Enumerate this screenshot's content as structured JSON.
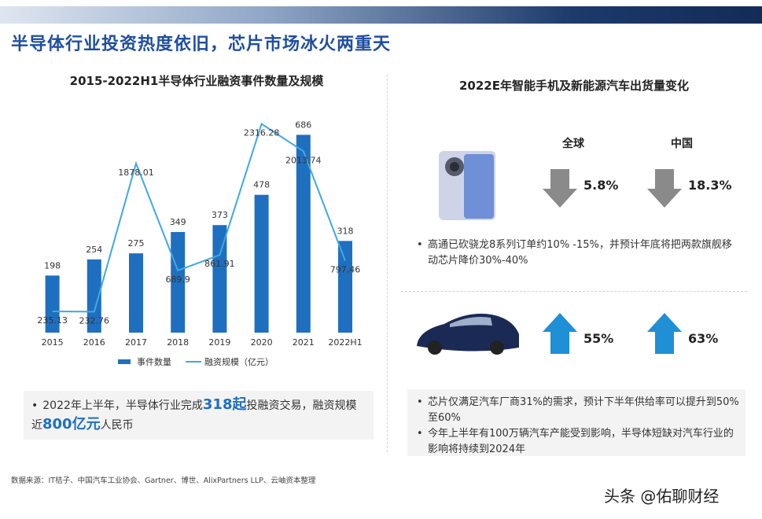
{
  "title": "半导体行业投资热度依旧，芯片市场冰火两重天",
  "chart_data": {
    "type": "bar",
    "title": "2015-2022H1半导体行业融资事件数量及规模",
    "categories": [
      "2015",
      "2016",
      "2017",
      "2018",
      "2019",
      "2020",
      "2021",
      "2022H1"
    ],
    "series": [
      {
        "name": "事件数量",
        "type": "bar",
        "color": "#1f6fc0",
        "values": [
          198,
          254,
          275,
          349,
          373,
          478,
          686,
          318
        ]
      },
      {
        "name": "融资规模（亿元）",
        "type": "line",
        "axis": "y2",
        "color": "#3fa9e0",
        "values": [
          235.13,
          232.76,
          1878.01,
          689.9,
          861.91,
          2316.28,
          2013.74,
          797.46
        ]
      }
    ],
    "ylim": [
      0,
      750
    ],
    "y2lim": [
      0,
      2400
    ],
    "legend": "bottom"
  },
  "left_note": [
    "2022年上半年，半导体行业完成",
    "318起",
    "投融资交易，融资规模近",
    "800亿元",
    "人民币"
  ],
  "right_panel": {
    "title": "2022E年智能手机及新能源汽车出货量变化",
    "columns": [
      "全球",
      "中国"
    ],
    "smartphone": {
      "changes": [
        "5.8%",
        "18.3%"
      ],
      "notes": [
        "高通已砍骁龙8系列订单约10% -15%，并预计年底将把两款旗舰移动芯片降价30%-40%"
      ]
    },
    "vehicle": {
      "changes": [
        "55%",
        "63%"
      ],
      "notes": [
        "芯片仅满足汽车厂商31%的需求，预计下半年供给率可以提升到50%至60%",
        "今年上半年有100万辆汽车产能受到影响，半导体短缺对汽车行业的影响将持续到2024年"
      ]
    }
  },
  "source": "数据来源：IT桔子、中国汽车工业协会、Gartner、博世、AlixPartners LLP、云岫资本整理",
  "watermark": "头条 @佑聊财经"
}
